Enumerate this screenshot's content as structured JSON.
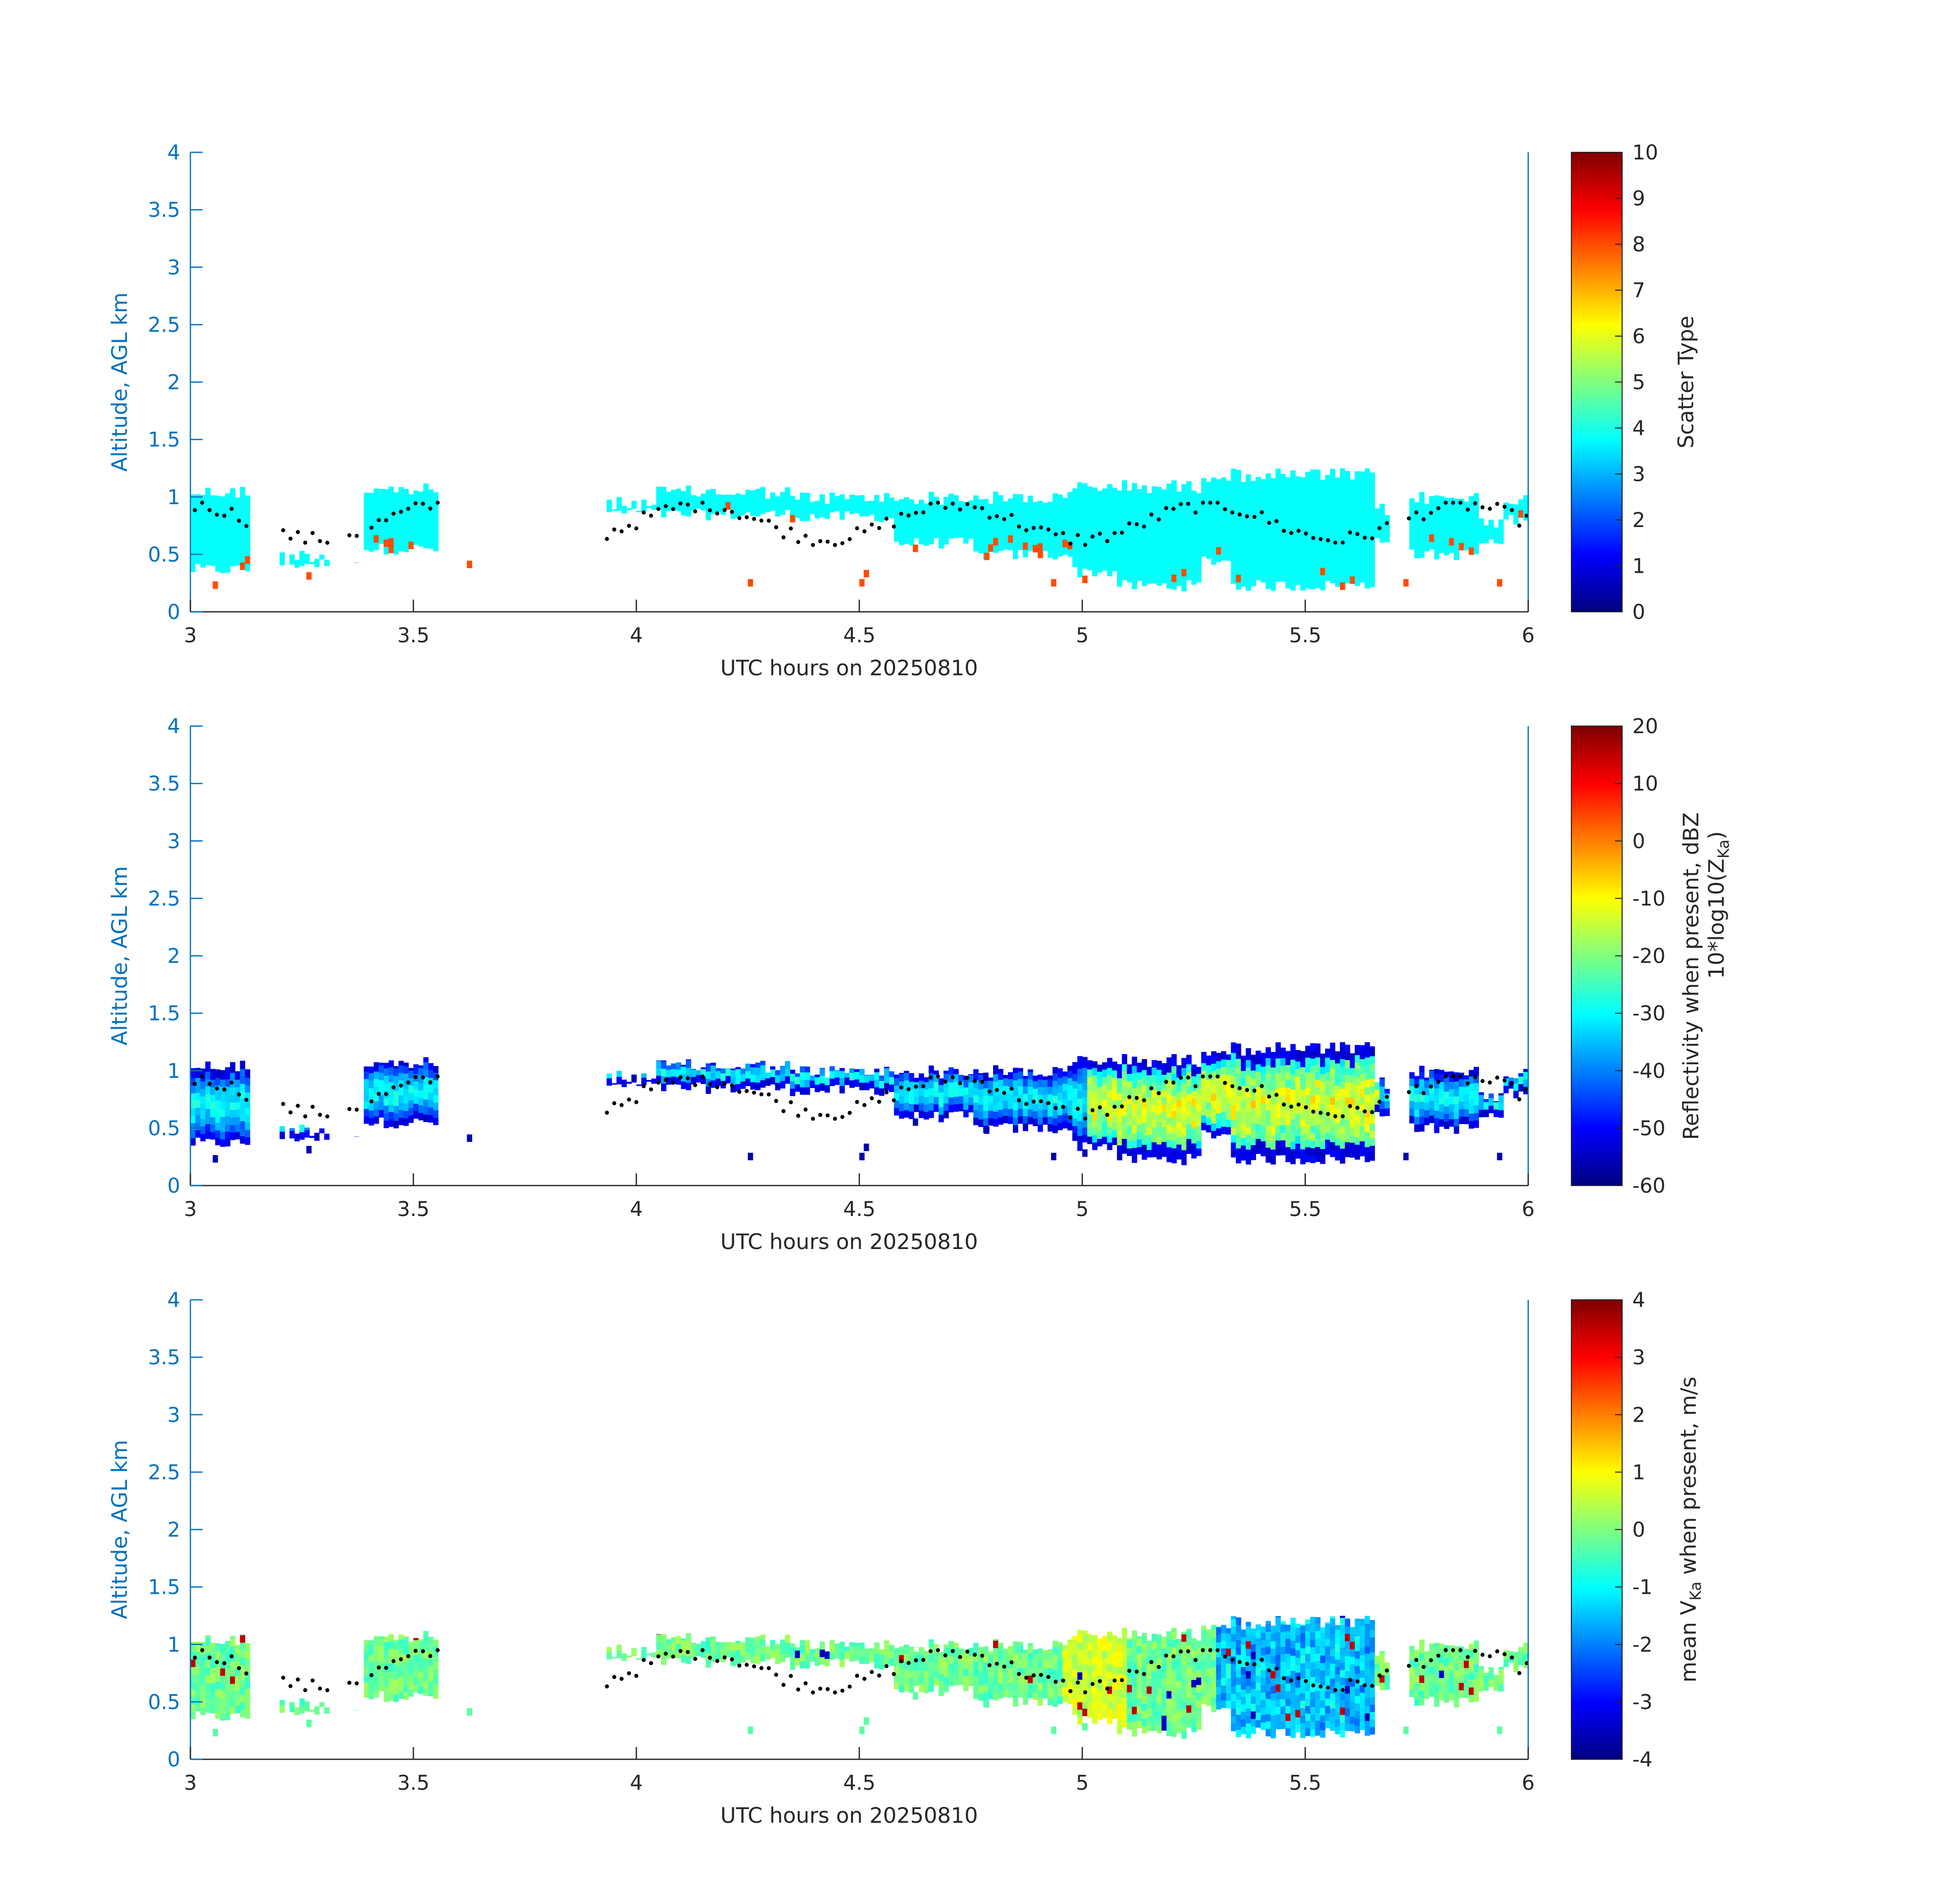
{
  "figure": {
    "colors": {
      "axis_blue": "#0072bd",
      "text_black": "#262626",
      "dot": "#000000"
    },
    "colormap": "jet"
  },
  "chart_data": [
    {
      "type": "heatmap",
      "title": "",
      "xlabel": "UTC hours on 20250810",
      "ylabel": "Altitude, AGL km",
      "xlim": [
        3,
        6
      ],
      "ylim": [
        0,
        4
      ],
      "xticks": [
        "3",
        "3.5",
        "4",
        "4.5",
        "5",
        "5.5",
        "6"
      ],
      "yticks": [
        "0",
        "0.5",
        "1",
        "1.5",
        "2",
        "2.5",
        "3",
        "3.5",
        "4"
      ],
      "grid": false,
      "colorbar": {
        "label_lines": [
          "Scatter Type"
        ],
        "range": [
          0,
          10
        ],
        "ticks": [
          "0",
          "1",
          "2",
          "3",
          "4",
          "5",
          "6",
          "7",
          "8",
          "9",
          "10"
        ]
      },
      "dominant_values": {
        "cloud": 3.8,
        "lower_specks": 8.0
      },
      "cloud_base_dots": "black dots marking cloud base altitude, approx. 0.5–1.0 km"
    },
    {
      "type": "heatmap",
      "title": "",
      "xlabel": "UTC hours on 20250810",
      "ylabel": "Altitude, AGL km",
      "xlim": [
        3,
        6
      ],
      "ylim": [
        0,
        4
      ],
      "xticks": [
        "3",
        "3.5",
        "4",
        "4.5",
        "5",
        "5.5",
        "6"
      ],
      "yticks": [
        "0",
        "0.5",
        "1",
        "1.5",
        "2",
        "2.5",
        "3",
        "3.5",
        "4"
      ],
      "grid": false,
      "colorbar": {
        "label_lines": [
          "Reflectivity when present, dBZ",
          "10*log10(Z",
          "Ka",
          ")"
        ],
        "range": [
          -60,
          20
        ],
        "ticks": [
          "-60",
          "-50",
          "-40",
          "-30",
          "-20",
          "-10",
          "0",
          "10",
          "20"
        ]
      },
      "value_range_shown": [
        -58,
        -12
      ]
    },
    {
      "type": "heatmap",
      "title": "",
      "xlabel": "UTC hours on 20250810",
      "ylabel": "Altitude, AGL km",
      "xlim": [
        3,
        6
      ],
      "ylim": [
        0,
        4
      ],
      "xticks": [
        "3",
        "3.5",
        "4",
        "4.5",
        "5",
        "5.5",
        "6"
      ],
      "yticks": [
        "0",
        "0.5",
        "1",
        "1.5",
        "2",
        "2.5",
        "3",
        "3.5",
        "4"
      ],
      "grid": false,
      "colorbar": {
        "label_lines": [
          "mean V",
          "Ka",
          " when present, m/s"
        ],
        "range": [
          -4,
          4
        ],
        "ticks": [
          "-4",
          "-3",
          "-2",
          "-1",
          "0",
          "1",
          "2",
          "3",
          "4"
        ]
      },
      "value_range_shown": [
        -3.5,
        3.8
      ]
    }
  ]
}
